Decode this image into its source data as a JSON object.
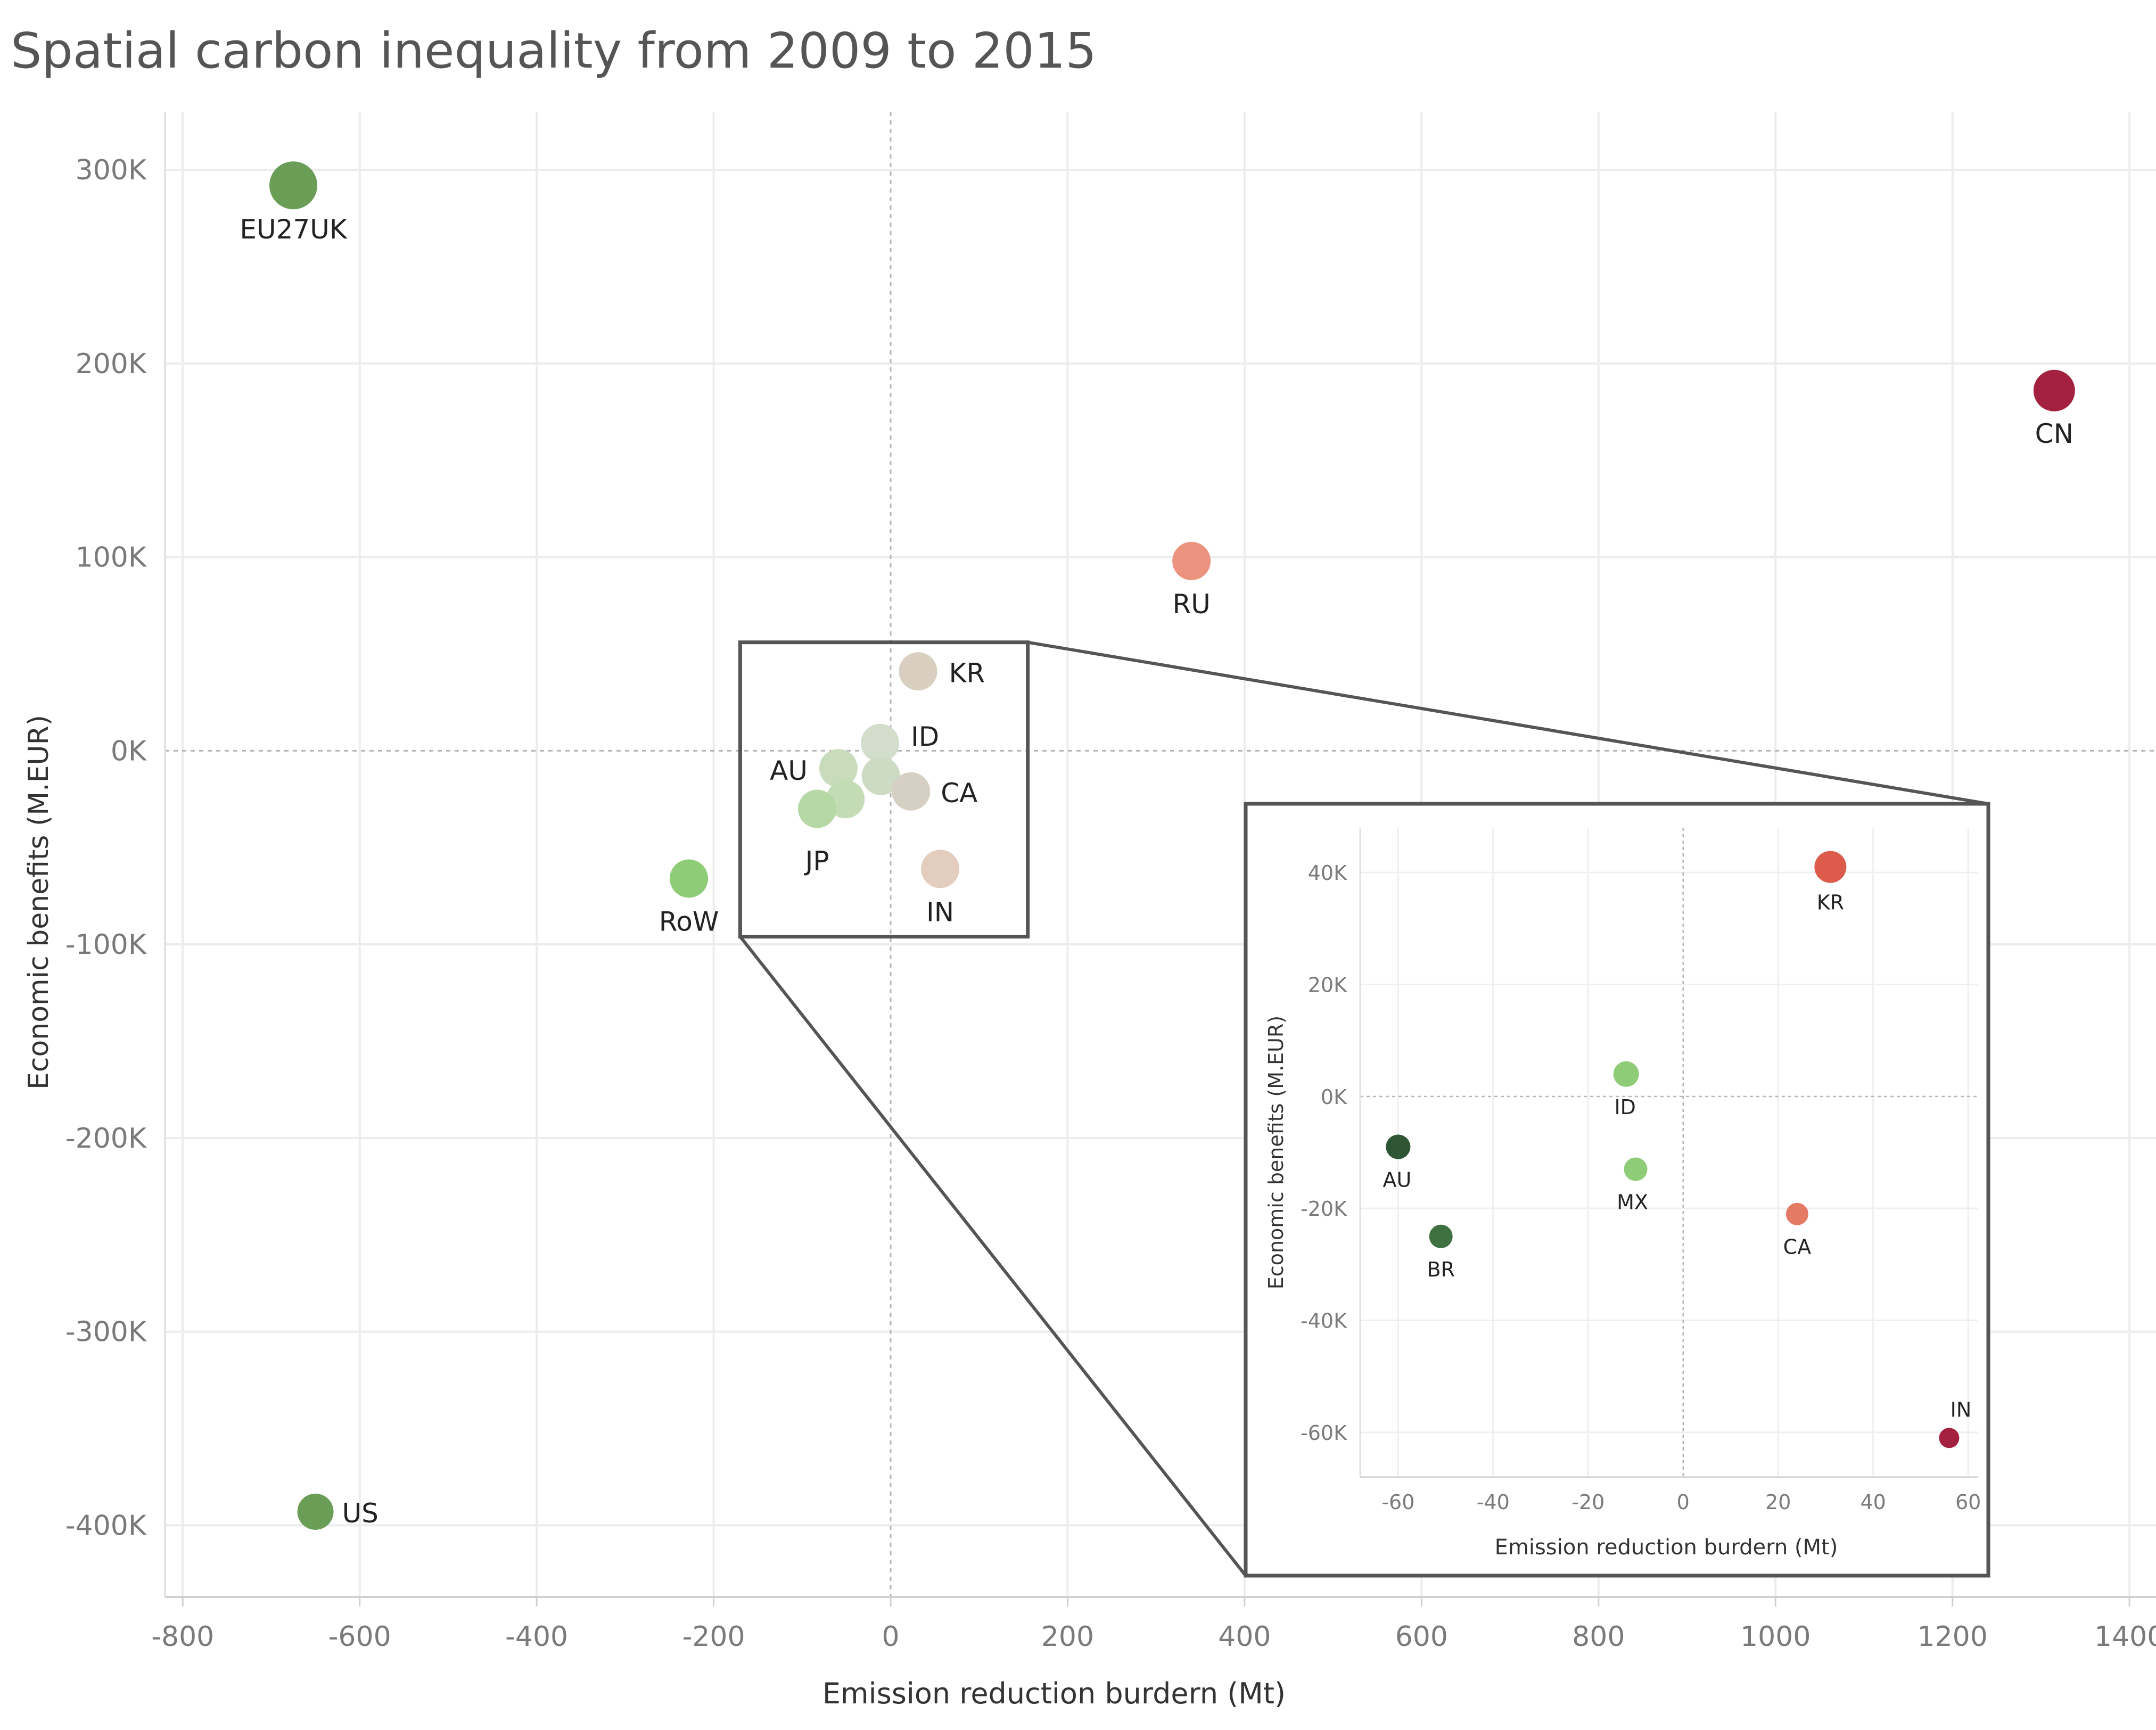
{
  "title": "Spatial carbon inequality from 2009 to 2015",
  "chart_data": [
    {
      "type": "scatter",
      "name": "main",
      "title": "Spatial carbon inequality from 2009 to 2015",
      "xlabel": "Emission reduction burdern (Mt)",
      "ylabel": "Economic benefits (M.EUR)",
      "xlim": [
        -820,
        1430
      ],
      "ylim": [
        -437,
        330
      ],
      "x_ticks": [
        -800,
        -600,
        -400,
        -200,
        0,
        200,
        400,
        600,
        800,
        1000,
        1200,
        1400
      ],
      "x_tick_labels": [
        "-800",
        "-600",
        "-400",
        "-200",
        "0",
        "200",
        "400",
        "600",
        "800",
        "1000",
        "1200",
        "1400"
      ],
      "y_ticks": [
        300,
        200,
        100,
        0,
        -100,
        -200,
        -300,
        -400
      ],
      "y_tick_labels": [
        "300K",
        "200K",
        "100K",
        "0K",
        "-100K",
        "-200K",
        "-300K",
        "-400K"
      ],
      "y_unit": "K M.EUR",
      "grid": true,
      "points": [
        {
          "label": "EU27UK",
          "x": -675,
          "y": 292,
          "color": "#6a9e56"
        },
        {
          "label": "CN",
          "x": 1315,
          "y": 186,
          "color": "#a3203f"
        },
        {
          "label": "RU",
          "x": 340,
          "y": 98,
          "color": "#ec9380"
        },
        {
          "label": "KR",
          "x": 31,
          "y": 41,
          "color": "#d9cfc0"
        },
        {
          "label": "ID",
          "x": -12,
          "y": 4,
          "color": "#d2ddcb"
        },
        {
          "label": "AU",
          "x": -59,
          "y": -9,
          "color": "#c8dcbc"
        },
        {
          "label": "MX",
          "x": -11,
          "y": -13,
          "color": "#cddbc5"
        },
        {
          "label": "CA",
          "x": 23,
          "y": -21,
          "color": "#d6cfc4"
        },
        {
          "label": "BR",
          "x": -51,
          "y": -25,
          "color": "#c3dcb5"
        },
        {
          "label": "JP",
          "x": -83,
          "y": -30,
          "color": "#b5d8a4"
        },
        {
          "label": "IN",
          "x": 56,
          "y": -61,
          "color": "#e2cdbe"
        },
        {
          "label": "RoW",
          "x": -228,
          "y": -66,
          "color": "#8fcc78"
        },
        {
          "label": "US",
          "x": -650,
          "y": -393,
          "color": "#6a9e56"
        }
      ]
    },
    {
      "type": "scatter",
      "name": "inset",
      "xlabel": "Emission reduction burdern (Mt)",
      "ylabel": "Economic benefits (M.EUR)",
      "xlim": [
        -68,
        62
      ],
      "ylim": [
        -68,
        48
      ],
      "x_ticks": [
        -60,
        -40,
        -20,
        0,
        20,
        40,
        60
      ],
      "x_tick_labels": [
        "-60",
        "-40",
        "-20",
        "0",
        "20",
        "40",
        "60"
      ],
      "y_ticks": [
        40,
        20,
        0,
        -20,
        -40,
        -60
      ],
      "y_tick_labels": [
        "40K",
        "20K",
        "0K",
        "-20K",
        "-40K",
        "-60K"
      ],
      "grid": true,
      "points": [
        {
          "label": "KR",
          "x": 31,
          "y": 41,
          "color": "#dc5b4b"
        },
        {
          "label": "ID",
          "x": -12,
          "y": 4,
          "color": "#8fcc78"
        },
        {
          "label": "AU",
          "x": -60,
          "y": -9,
          "color": "#2e5534"
        },
        {
          "label": "MX",
          "x": -10,
          "y": -13,
          "color": "#8fcc78"
        },
        {
          "label": "CA",
          "x": 24,
          "y": -21,
          "color": "#e57a64"
        },
        {
          "label": "BR",
          "x": -51,
          "y": -25,
          "color": "#3f7040"
        },
        {
          "label": "IN",
          "x": 56,
          "y": -61,
          "color": "#a3203f"
        }
      ]
    }
  ]
}
